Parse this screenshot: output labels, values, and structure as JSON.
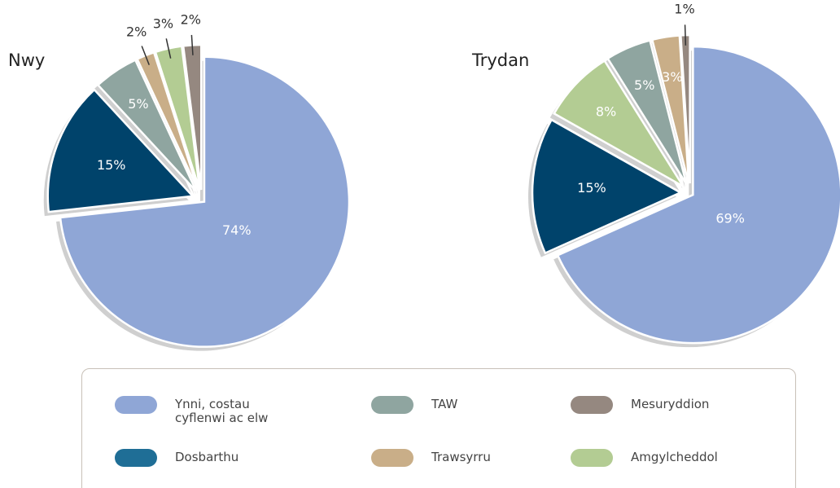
{
  "chart_data": [
    {
      "type": "pie",
      "title": "Nwy",
      "categories": [
        "Ynni, costau cyflenwi ac elw",
        "Dosbarthu",
        "TAW",
        "Trawsyrru",
        "Amgylcheddol",
        "Mesuryddion"
      ],
      "values": [
        74,
        15,
        5,
        2,
        3,
        2
      ],
      "value_labels": [
        "74%",
        "15%",
        "5%",
        "2%",
        "3%",
        "2%"
      ],
      "colors": [
        "#8fa6d6",
        "#00436b",
        "#8fa5a0",
        "#c9ae88",
        "#b3cc93",
        "#958880"
      ]
    },
    {
      "type": "pie",
      "title": "Trydan",
      "categories": [
        "Ynni, costau cyflenwi ac elw",
        "Dosbarthu",
        "Amgylcheddol",
        "TAW",
        "Trawsyrru",
        "Mesuryddion"
      ],
      "values": [
        69,
        15,
        8,
        5,
        3,
        1
      ],
      "value_labels": [
        "69%",
        "15%",
        "8%",
        "5%",
        "3%",
        "1%"
      ],
      "colors": [
        "#8fa6d6",
        "#00436b",
        "#b3cc93",
        "#8fa5a0",
        "#c9ae88",
        "#958880"
      ]
    }
  ],
  "legend": [
    {
      "name": "Ynni, costau cyflenwi ac elw",
      "color": "#8fa6d6"
    },
    {
      "name": "TAW",
      "color": "#8fa5a0"
    },
    {
      "name": "Mesuryddion",
      "color": "#958880"
    },
    {
      "name": "Dosbarthu",
      "color": "#1f6e96"
    },
    {
      "name": "Trawsyrru",
      "color": "#c9ae88"
    },
    {
      "name": "Amgylcheddol",
      "color": "#b3cc93"
    }
  ]
}
